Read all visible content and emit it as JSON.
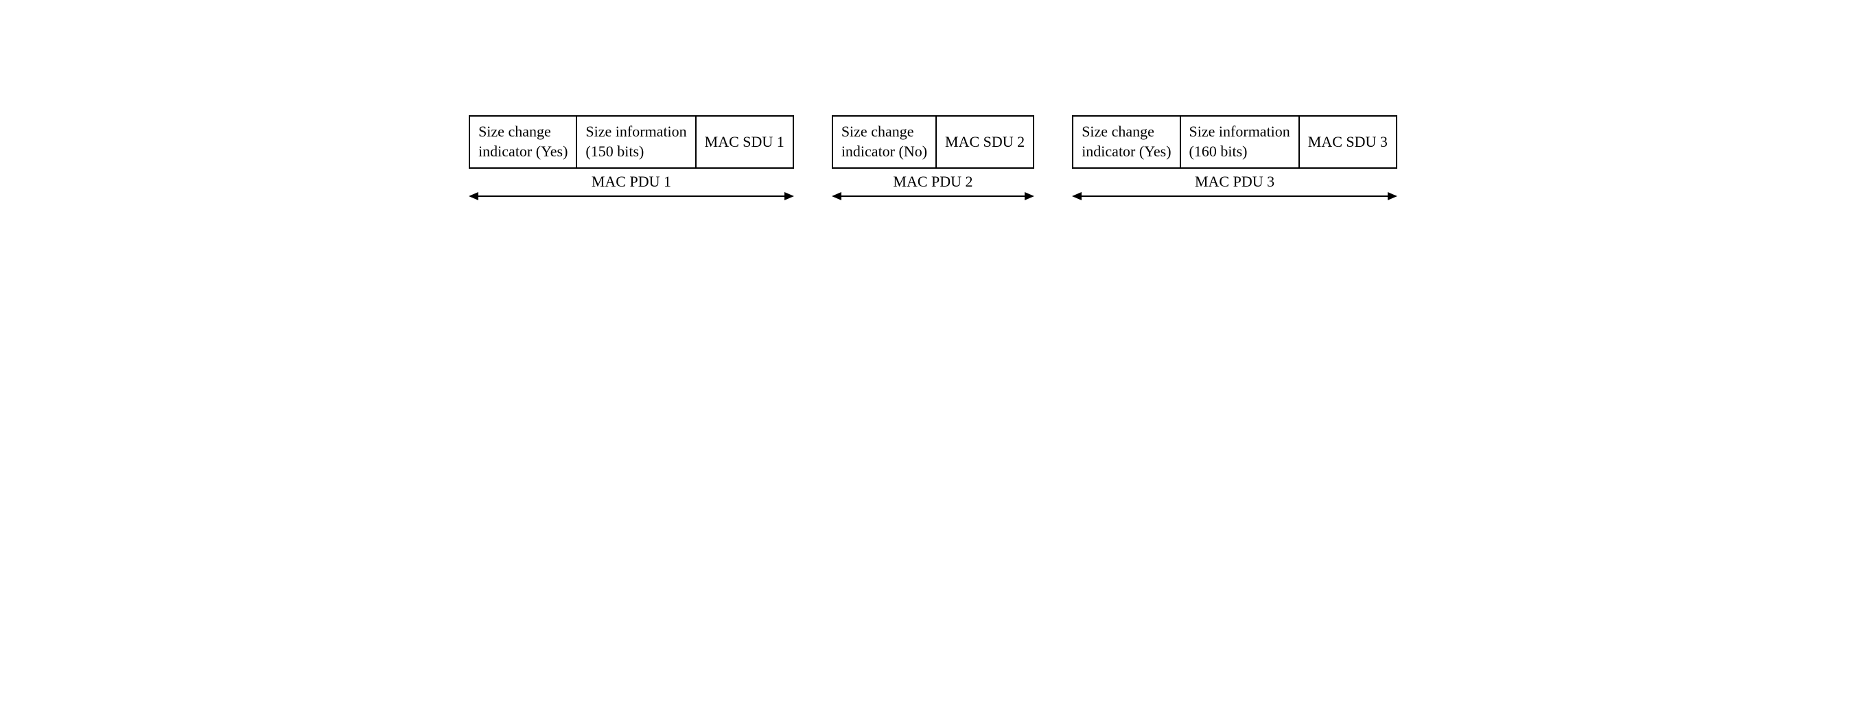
{
  "pdus": [
    {
      "cells": [
        "Size change\nindicator (Yes)",
        "Size information\n(150 bits)",
        "MAC SDU 1"
      ],
      "label": "MAC PDU 1"
    },
    {
      "cells": [
        "Size change\nindicator (No)",
        "MAC SDU 2"
      ],
      "label": "MAC PDU 2"
    },
    {
      "cells": [
        "Size change\nindicator (Yes)",
        "Size information\n(160 bits)",
        "MAC SDU 3"
      ],
      "label": "MAC PDU 3"
    }
  ],
  "style": {
    "font_family": "Georgia, Times New Roman, serif",
    "text_color": "#000000",
    "border_color": "#000000",
    "border_width": 2,
    "background_color": "#ffffff",
    "cell_font_size": 22,
    "label_font_size": 22,
    "pdu_gap": 55,
    "arrow_head_size": 14,
    "arrow_shaft_height": 2
  }
}
